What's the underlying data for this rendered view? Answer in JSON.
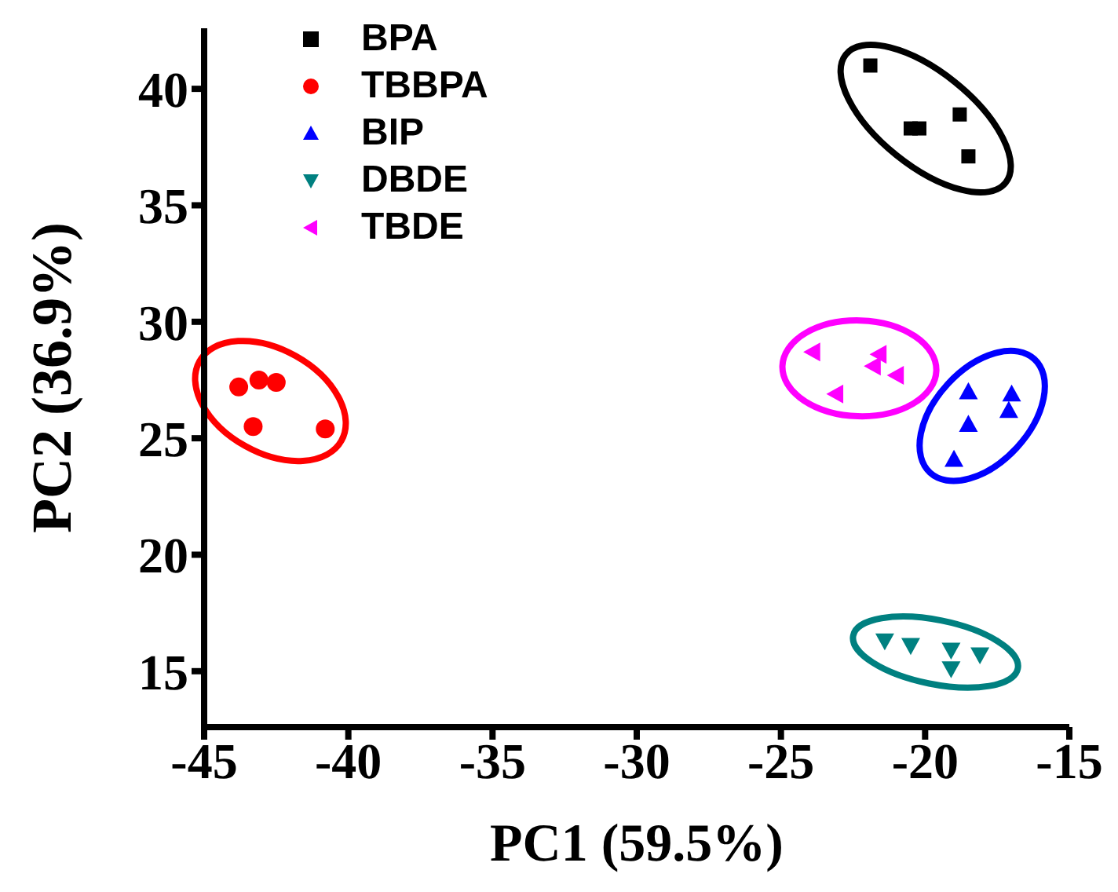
{
  "chart_data": {
    "type": "scatter",
    "xlabel": "PC1 (59.5%)",
    "ylabel": "PC2 (36.9%)",
    "xlim": [
      -45,
      -15
    ],
    "xticks": [
      -45,
      -40,
      -35,
      -30,
      -25,
      -20,
      -15
    ],
    "ylim": [
      12.6,
      42.6
    ],
    "yticks": [
      15,
      20,
      25,
      30,
      35,
      40
    ],
    "grid": false,
    "legend": "top left",
    "series": [
      {
        "name": "BPA",
        "color": "#000000",
        "marker": "square",
        "x": [
          -21.9,
          -20.5,
          -20.2,
          -18.8,
          -18.5
        ],
        "values": [
          41.0,
          38.3,
          38.3,
          38.9,
          37.1
        ]
      },
      {
        "name": "TBBPA",
        "color": "#ff0000",
        "marker": "circle",
        "x": [
          -43.8,
          -43.1,
          -42.5,
          -43.3,
          -40.8
        ],
        "values": [
          27.2,
          27.5,
          27.4,
          25.5,
          25.4
        ]
      },
      {
        "name": "BIP",
        "color": "#0000ff",
        "marker": "triangle",
        "x": [
          -18.5,
          -17.0,
          -17.1,
          -18.5,
          -19.0
        ],
        "values": [
          27.0,
          26.9,
          26.2,
          25.6,
          24.1
        ]
      },
      {
        "name": "DBDE",
        "color": "#008080",
        "marker": "triangle-down",
        "x": [
          -21.4,
          -20.5,
          -19.1,
          -18.1,
          -19.1
        ],
        "values": [
          16.3,
          16.1,
          15.9,
          15.7,
          15.1
        ]
      },
      {
        "name": "TBDE",
        "color": "#ff00ff",
        "marker": "triangle-left",
        "x": [
          -23.9,
          -21.6,
          -21.8,
          -21.0,
          -23.1
        ],
        "values": [
          28.7,
          28.6,
          28.1,
          27.7,
          26.9
        ]
      }
    ]
  }
}
